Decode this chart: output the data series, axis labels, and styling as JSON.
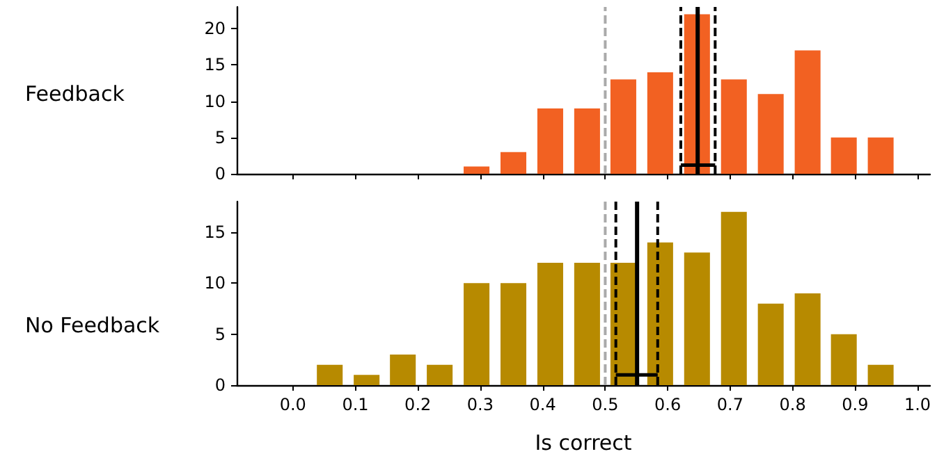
{
  "chart_data": [
    {
      "type": "bar",
      "ylabel": "Feedback",
      "x": [
        0,
        0.059,
        0.118,
        0.176,
        0.235,
        0.294,
        0.353,
        0.412,
        0.471,
        0.529,
        0.588,
        0.647,
        0.706,
        0.765,
        0.824,
        0.882,
        0.941
      ],
      "series": [
        {
          "color": "#f26122",
          "values": [
            0,
            0,
            0,
            0,
            0,
            1,
            3,
            9,
            9,
            13,
            14,
            22,
            13,
            11,
            17,
            5,
            5
          ]
        },
        {
          "type": "line",
          "color": "#000000",
          "x": [
            0.621,
            0.676
          ],
          "values": [
            1.2,
            1.2
          ]
        }
      ],
      "marker": "none",
      "xlim": [
        -0.09,
        1.02
      ],
      "ylim": [
        0,
        23
      ],
      "xticks": [
        {
          "value": 0,
          "label": null
        },
        {
          "value": 0.1,
          "label": null
        },
        {
          "value": 0.2,
          "label": null
        },
        {
          "value": 0.3,
          "label": null
        },
        {
          "value": 0.4,
          "label": null
        },
        {
          "value": 0.5,
          "label": null
        },
        {
          "value": 0.6,
          "label": null
        },
        {
          "value": 0.7,
          "label": null
        },
        {
          "value": 0.8,
          "label": null
        },
        {
          "value": 0.9,
          "label": null
        },
        {
          "value": 1,
          "label": null
        }
      ],
      "yticks": [
        0,
        5,
        10,
        15,
        20
      ],
      "tick_labels": "y",
      "ref_lines": [
        {
          "axis": "x",
          "value": 0.5,
          "color": "#aaaaaa",
          "line_style": "dashed"
        },
        {
          "axis": "x",
          "value": 0.648,
          "color": "#000000",
          "line_style": "solid"
        },
        {
          "axis": "x",
          "value": 0.621,
          "color": "#000000",
          "line_style": "dashed"
        },
        {
          "axis": "x",
          "value": 0.676,
          "color": "#000000",
          "line_style": "dashed"
        }
      ]
    },
    {
      "type": "bar",
      "ylabel": "No Feedback",
      "xlabel": "Is correct",
      "x": [
        0,
        0.059,
        0.118,
        0.176,
        0.235,
        0.294,
        0.353,
        0.412,
        0.471,
        0.529,
        0.588,
        0.647,
        0.706,
        0.765,
        0.824,
        0.882,
        0.941
      ],
      "series": [
        {
          "color": "#b78a00",
          "values": [
            0,
            2,
            1,
            3,
            2,
            10,
            10,
            12,
            12,
            12,
            14,
            13,
            17,
            8,
            9,
            5,
            2
          ]
        },
        {
          "type": "line",
          "color": "#000000",
          "x": [
            0.517,
            0.584
          ],
          "values": [
            1,
            1
          ]
        }
      ],
      "marker": "none",
      "xlim": [
        -0.09,
        1.02
      ],
      "ylim": [
        0,
        18
      ],
      "xticks": [
        {
          "value": 0,
          "label": "0.0"
        },
        {
          "value": 0.1,
          "label": "0.1"
        },
        {
          "value": 0.2,
          "label": "0.2"
        },
        {
          "value": 0.3,
          "label": "0.3"
        },
        {
          "value": 0.4,
          "label": "0.4"
        },
        {
          "value": 0.5,
          "label": "0.5"
        },
        {
          "value": 0.6,
          "label": "0.6"
        },
        {
          "value": 0.7,
          "label": "0.7"
        },
        {
          "value": 0.8,
          "label": "0.8"
        },
        {
          "value": 0.9,
          "label": "0.9"
        },
        {
          "value": 1,
          "label": "1.0"
        }
      ],
      "yticks": [
        0,
        5,
        10,
        15
      ],
      "ref_lines": [
        {
          "axis": "x",
          "value": 0.5,
          "color": "#aaaaaa",
          "line_style": "dashed"
        },
        {
          "axis": "x",
          "value": 0.551,
          "color": "#000000",
          "line_style": "solid"
        },
        {
          "axis": "x",
          "value": 0.517,
          "color": "#000000",
          "line_style": "dashed"
        },
        {
          "axis": "x",
          "value": 0.584,
          "color": "#000000",
          "line_style": "dashed"
        }
      ]
    }
  ]
}
